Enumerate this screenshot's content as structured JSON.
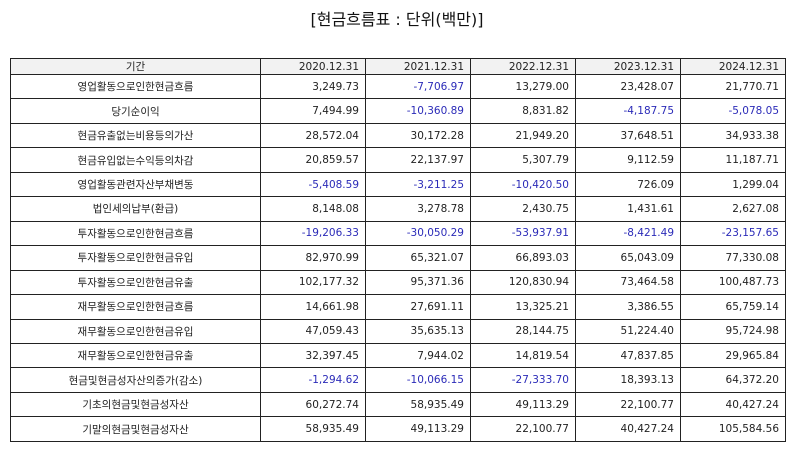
{
  "title": "[현금흐름표 : 단위(백만)]",
  "columns": [
    "기간",
    "2020.12.31",
    "2021.12.31",
    "2022.12.31",
    "2023.12.31",
    "2024.12.31"
  ],
  "rows": [
    {
      "label": "영업활동으로인한현금흐름",
      "values": [
        "3,249.73",
        "-7,706.97",
        "13,279.00",
        "23,428.07",
        "21,770.71"
      ]
    },
    {
      "label": "당기순이익",
      "values": [
        "7,494.99",
        "-10,360.89",
        "8,831.82",
        "-4,187.75",
        "-5,078.05"
      ]
    },
    {
      "label": "현금유출없는비용등의가산",
      "values": [
        "28,572.04",
        "30,172.28",
        "21,949.20",
        "37,648.51",
        "34,933.38"
      ]
    },
    {
      "label": "현금유입없는수익등의차감",
      "values": [
        "20,859.57",
        "22,137.97",
        "5,307.79",
        "9,112.59",
        "11,187.71"
      ]
    },
    {
      "label": "영업활동관련자산부채변동",
      "values": [
        "-5,408.59",
        "-3,211.25",
        "-10,420.50",
        "726.09",
        "1,299.04"
      ]
    },
    {
      "label": "법인세의납부(환급)",
      "values": [
        "8,148.08",
        "3,278.78",
        "2,430.75",
        "1,431.61",
        "2,627.08"
      ]
    },
    {
      "label": "투자활동으로인한현금흐름",
      "values": [
        "-19,206.33",
        "-30,050.29",
        "-53,937.91",
        "-8,421.49",
        "-23,157.65"
      ]
    },
    {
      "label": "투자활동으로인한현금유입",
      "values": [
        "82,970.99",
        "65,321.07",
        "66,893.03",
        "65,043.09",
        "77,330.08"
      ]
    },
    {
      "label": "투자활동으로인한현금유출",
      "values": [
        "102,177.32",
        "95,371.36",
        "120,830.94",
        "73,464.58",
        "100,487.73"
      ]
    },
    {
      "label": "재무활동으로인한현금흐름",
      "values": [
        "14,661.98",
        "27,691.11",
        "13,325.21",
        "3,386.55",
        "65,759.14"
      ]
    },
    {
      "label": "재무활동으로인한현금유입",
      "values": [
        "47,059.43",
        "35,635.13",
        "28,144.75",
        "51,224.40",
        "95,724.98"
      ]
    },
    {
      "label": "재무활동으로인한현금유출",
      "values": [
        "32,397.45",
        "7,944.02",
        "14,819.54",
        "47,837.85",
        "29,965.84"
      ]
    },
    {
      "label": "현금및현금성자산의증가(감소)",
      "values": [
        "-1,294.62",
        "-10,066.15",
        "-27,333.70",
        "18,393.13",
        "64,372.20"
      ]
    },
    {
      "label": "기초의현금및현금성자산",
      "values": [
        "60,272.74",
        "58,935.49",
        "49,113.29",
        "22,100.77",
        "40,427.24"
      ]
    },
    {
      "label": "기말의현금및현금성자산",
      "values": [
        "58,935.49",
        "49,113.29",
        "22,100.77",
        "40,427.24",
        "105,584.56"
      ]
    }
  ],
  "colors": {
    "negative": "#2b2bb8",
    "header_bg": "#f2f2f2",
    "border": "#222222"
  }
}
